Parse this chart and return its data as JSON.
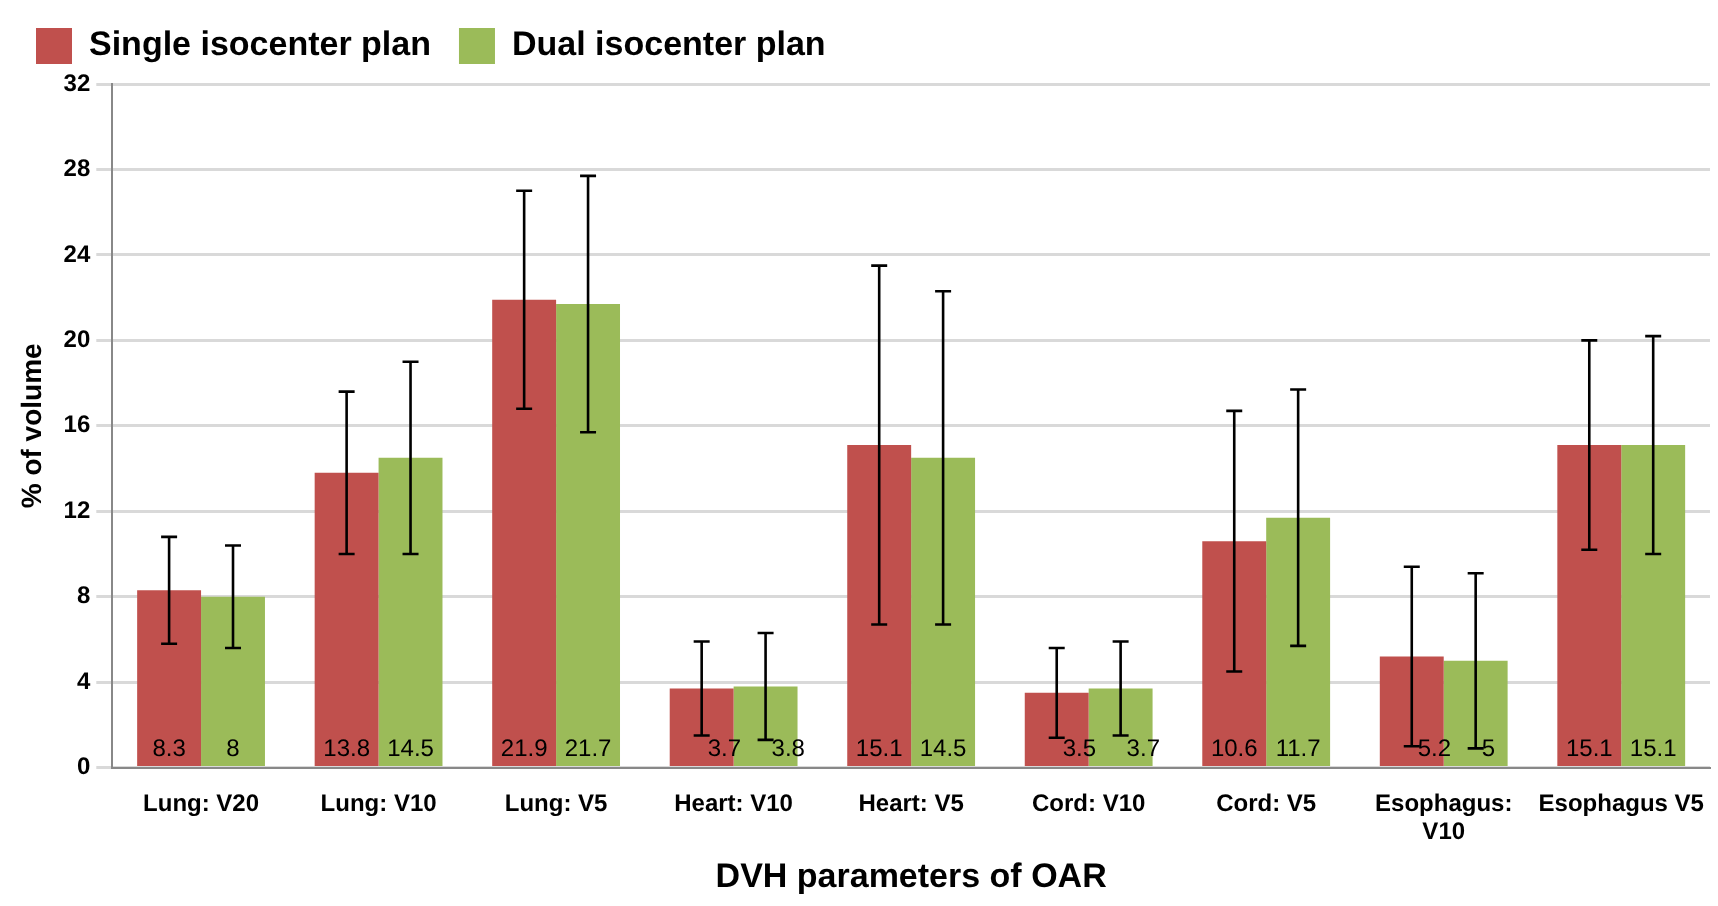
{
  "chart_data": {
    "type": "bar",
    "xlabel": "DVH parameters of OAR",
    "ylabel": "% of volume",
    "categories": [
      "Lung: V20",
      "Lung: V10",
      "Lung: V5",
      "Heart: V10",
      "Heart: V5",
      "Cord: V10",
      "Cord: V5",
      "Esophagus: V10",
      "Esophagus V5"
    ],
    "series": [
      {
        "name": "Single isocenter plan",
        "color": "#c0504d",
        "values": [
          8.3,
          13.8,
          21.9,
          3.7,
          15.1,
          3.5,
          10.6,
          5.2,
          15.1
        ],
        "errors": [
          2.5,
          3.8,
          5.1,
          2.2,
          8.4,
          2.1,
          6.1,
          4.2,
          4.9
        ]
      },
      {
        "name": "Dual isocenter plan",
        "color": "#9bbb59",
        "values": [
          8,
          14.5,
          21.7,
          3.8,
          14.5,
          3.7,
          11.7,
          5,
          15.1
        ],
        "errors": [
          2.4,
          4.5,
          6.0,
          2.5,
          7.8,
          2.2,
          6.0,
          4.1,
          5.1
        ]
      }
    ],
    "ylim": [
      0,
      32
    ],
    "yticks": [
      0,
      4,
      8,
      12,
      16,
      20,
      24,
      28,
      32
    ],
    "grid": "y",
    "legend": "top left",
    "data_labels": true
  }
}
